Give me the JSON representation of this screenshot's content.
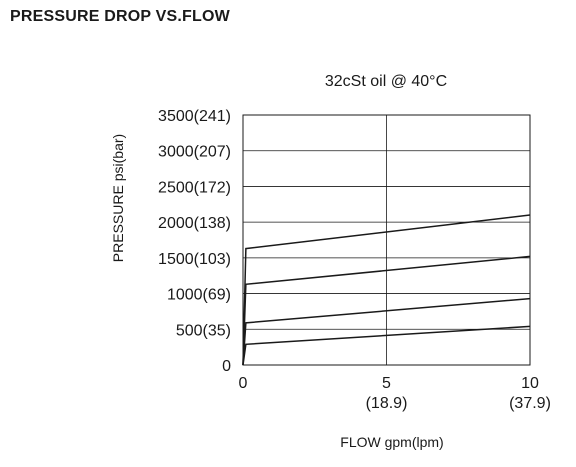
{
  "page_title": "PRESSURE DROP VS.FLOW",
  "chart_data": {
    "type": "line",
    "title": "32cSt  oil @ 40°C",
    "xlabel": "FLOW gpm(lpm)",
    "ylabel": "PRESSURE psi(bar)",
    "xlim": [
      0,
      10
    ],
    "ylim": [
      0,
      3500
    ],
    "grid": true,
    "x_ticks": [
      {
        "value": 0,
        "label": "0",
        "sublabel": ""
      },
      {
        "value": 5,
        "label": "5",
        "sublabel": "(18.9)"
      },
      {
        "value": 10,
        "label": "10",
        "sublabel": "(37.9)"
      }
    ],
    "y_ticks": [
      {
        "value": 0,
        "label": "0"
      },
      {
        "value": 500,
        "label": "500(35)"
      },
      {
        "value": 1000,
        "label": "1000(69)"
      },
      {
        "value": 1500,
        "label": "1500(103)"
      },
      {
        "value": 2000,
        "label": "2000(138)"
      },
      {
        "value": 2500,
        "label": "2500(172)"
      },
      {
        "value": 3000,
        "label": "3000(207)"
      },
      {
        "value": 3500,
        "label": "3500(241)"
      }
    ],
    "series": [
      {
        "x": [
          0,
          0.1,
          10
        ],
        "values": [
          0,
          1630,
          2100
        ]
      },
      {
        "x": [
          0,
          0.1,
          10
        ],
        "values": [
          0,
          1130,
          1520
        ]
      },
      {
        "x": [
          0,
          0.1,
          10
        ],
        "values": [
          0,
          590,
          930
        ]
      },
      {
        "x": [
          0,
          0.1,
          10
        ],
        "values": [
          0,
          290,
          540
        ]
      }
    ]
  }
}
